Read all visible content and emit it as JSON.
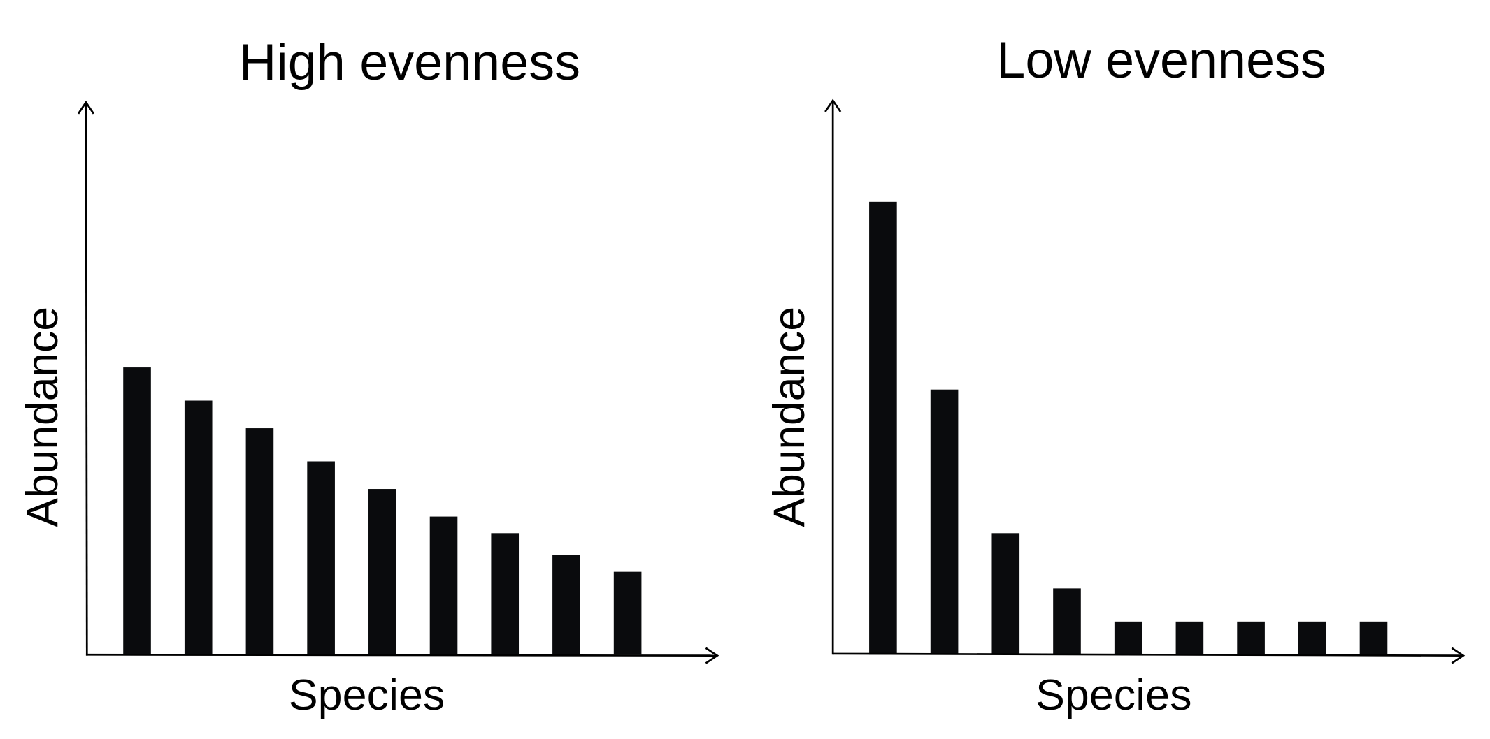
{
  "colors": {
    "bar": "#0a0b0d",
    "axis": "#000000",
    "background": "#ffffff"
  },
  "chart_data": [
    {
      "type": "bar",
      "title": "High evenness",
      "xlabel": "Species",
      "ylabel": "Abundance",
      "ylim": [
        0,
        100
      ],
      "grid": false,
      "values": [
        52,
        46,
        41,
        35,
        30,
        25,
        22,
        18,
        15
      ]
    },
    {
      "type": "bar",
      "title": "Low evenness",
      "xlabel": "Species",
      "ylabel": "Abundance",
      "ylim": [
        0,
        100
      ],
      "grid": false,
      "values": [
        82,
        48,
        22,
        12,
        6,
        6,
        6,
        6,
        6
      ]
    }
  ]
}
